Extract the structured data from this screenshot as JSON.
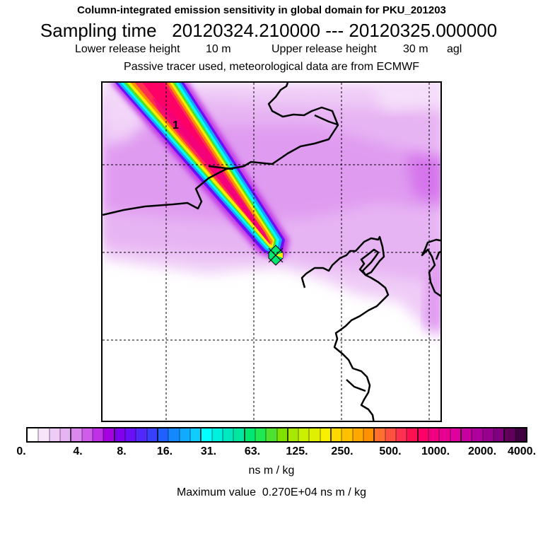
{
  "header": {
    "title": "Column-integrated emission sensitivity in global domain for PKU_201203",
    "sampling_label": "Sampling time",
    "sampling_start": "20120324.210000",
    "sampling_sep": "---",
    "sampling_end": "20120325.000000",
    "lower_release_label": "Lower release height",
    "lower_release_value": "10 m",
    "upper_release_label": "Upper release height",
    "upper_release_value": "30 m",
    "height_ref": "agl",
    "tracer_note": "Passive tracer used, meteorological data are from ECMWF"
  },
  "map": {
    "site_label": "1",
    "colors": {
      "coastline": "#000000",
      "grid": "#000000",
      "background_sensitivity": "#e9b8f4",
      "plume_core": "#ff0066"
    }
  },
  "legend": {
    "tick_labels": [
      "0.",
      "4.",
      "8.",
      "16.",
      "31.",
      "63.",
      "125.",
      "250.",
      "500.",
      "1000.",
      "2000.",
      "4000."
    ],
    "colors": [
      "#ffffff",
      "#f7e4fb",
      "#efccf7",
      "#e7b4f3",
      "#da88ee",
      "#cf5cea",
      "#c030e6",
      "#a400e2",
      "#8000ee",
      "#6a10f8",
      "#5028fa",
      "#3840fc",
      "#2060ff",
      "#1488ff",
      "#10aaff",
      "#10ccff",
      "#00ffff",
      "#00f0e0",
      "#00e8c0",
      "#00e8a0",
      "#00e870",
      "#20e850",
      "#50e030",
      "#80e000",
      "#a8e800",
      "#c8f000",
      "#e0f000",
      "#f8f000",
      "#ffd800",
      "#ffc000",
      "#ffa800",
      "#ff9000",
      "#ff7030",
      "#ff5040",
      "#ff3050",
      "#ff1050",
      "#ff0066",
      "#f00080",
      "#e80090",
      "#e000a0",
      "#c800a0",
      "#b0009c",
      "#980090",
      "#800080",
      "#60005a",
      "#400040"
    ],
    "unit": "ns m / kg",
    "max_label": "Maximum value",
    "max_value": "0.270E+04 ns m / kg"
  }
}
